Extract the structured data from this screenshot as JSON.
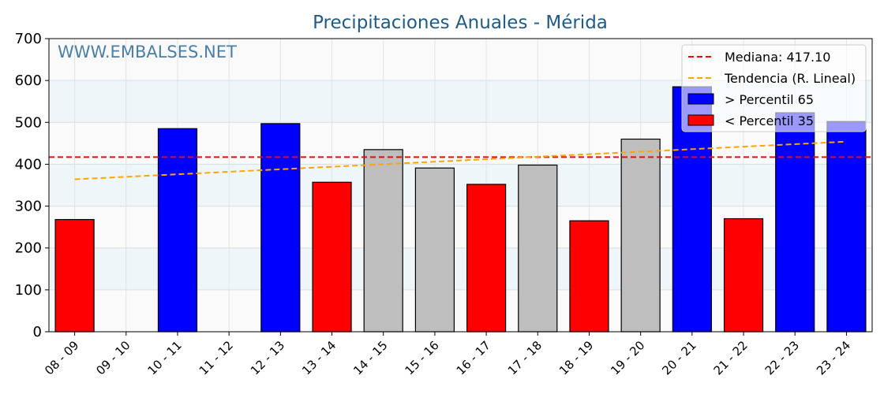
{
  "chart_data": {
    "type": "bar",
    "title": "Precipitaciones Anuales - Mérida",
    "watermark": "WWW.EMBALSES.NET",
    "xlabel": "",
    "ylabel": "",
    "ylim": [
      0,
      700
    ],
    "yticks": [
      "0",
      "100",
      "200",
      "300",
      "400",
      "500",
      "600",
      "700"
    ],
    "grid": true,
    "legend_position": "top-right",
    "categories": [
      "08 - 09",
      "09 - 10",
      "10 - 11",
      "11 - 12",
      "12 - 13",
      "13 - 14",
      "14 - 15",
      "15 - 16",
      "16 - 17",
      "17 - 18",
      "18 - 19",
      "19 - 20",
      "20 - 21",
      "21 - 22",
      "22 - 23",
      "23 - 24"
    ],
    "values": [
      268,
      null,
      485,
      null,
      497,
      357,
      435,
      391,
      352,
      398,
      265,
      460,
      585,
      270,
      523,
      502
    ],
    "bar_classes": [
      "low",
      null,
      "high",
      null,
      "high",
      "low",
      "mid",
      "mid",
      "low",
      "mid",
      "low",
      "mid",
      "high",
      "low",
      "high",
      "high"
    ],
    "colors": {
      "high": "#0000ff",
      "low": "#ff0000",
      "mid": "#bebebe",
      "median": "#ff0000",
      "trend": "#ffa500",
      "band": "#eef6fa",
      "bg": "#fafafa",
      "title": "#1f5b84"
    },
    "median": {
      "label": "Mediana: 417.10",
      "value": 417.1
    },
    "trend": {
      "label": "Tendencia (R. Lineal)",
      "start": 364,
      "end": 454
    },
    "legend": {
      "high_label": " > Percentil 65",
      "low_label": " < Percentil 35"
    }
  }
}
